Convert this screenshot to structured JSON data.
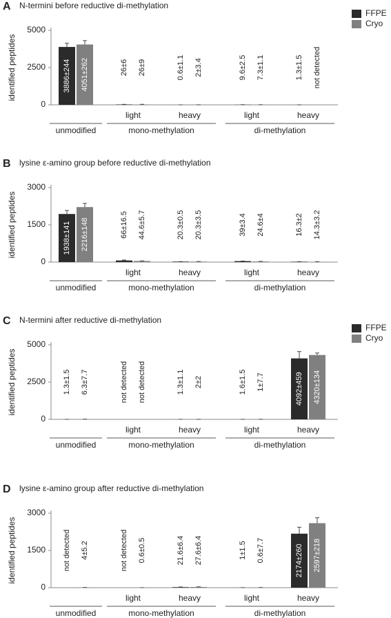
{
  "chart_data": [
    {
      "type": "bar",
      "panel": "A",
      "title": "N-termini before reductive di-methylation",
      "y_label": "identified peptides",
      "categories": [
        null,
        "light",
        "heavy",
        "light",
        "heavy"
      ],
      "groups": [
        "unmodified",
        "mono-methylation",
        "di-methylation"
      ],
      "ylim": [
        0,
        5000
      ],
      "yticks": [
        0,
        2500,
        5000
      ],
      "legend": true,
      "series": [
        {
          "name": "FFPE",
          "color": "#2b2b2b",
          "values": [
            3886,
            26,
            0.6,
            9.6,
            1.3
          ],
          "errors": [
            244,
            6,
            1.1,
            2.5,
            1.5
          ],
          "value_labels": [
            "3886±244",
            "26±6",
            "0.6±1.1",
            "9.6±2.5",
            "1.3±1.5"
          ]
        },
        {
          "name": "Cryo",
          "color": "#808080",
          "values": [
            4051,
            26,
            2,
            7.3,
            null
          ],
          "errors": [
            262,
            9,
            3.4,
            1.1,
            null
          ],
          "value_labels": [
            "4051±262",
            "26±9",
            "2±3.4",
            "7.3±1.1",
            "not detected"
          ]
        }
      ]
    },
    {
      "type": "bar",
      "panel": "B",
      "title": "lysine ε-amino group before reductive di-methylation",
      "y_label": "identified peptides",
      "categories": [
        null,
        "light",
        "heavy",
        "light",
        "heavy"
      ],
      "groups": [
        "unmodified",
        "mono-methylation",
        "di-methylation"
      ],
      "ylim": [
        0,
        3000
      ],
      "yticks": [
        0,
        1500,
        3000
      ],
      "legend": false,
      "series": [
        {
          "name": "FFPE",
          "color": "#2b2b2b",
          "values": [
            1938,
            66,
            20.3,
            39,
            16.3
          ],
          "errors": [
            141,
            16.5,
            0.5,
            3.4,
            2
          ],
          "value_labels": [
            "1938±141",
            "66±16.5",
            "20.3±0.5",
            "39±3.4",
            "16.3±2"
          ]
        },
        {
          "name": "Cryo",
          "color": "#808080",
          "values": [
            2216,
            44.6,
            20.3,
            24.6,
            14.3
          ],
          "errors": [
            148,
            5.7,
            3.5,
            4,
            3.2
          ],
          "value_labels": [
            "2216±148",
            "44.6±5.7",
            "20.3±3.5",
            "24.6±4",
            "14.3±3.2"
          ]
        }
      ]
    },
    {
      "type": "bar",
      "panel": "C",
      "title": "N-termini after reductive di-methylation",
      "y_label": "identified peptides",
      "categories": [
        null,
        "light",
        "heavy",
        "light",
        "heavy"
      ],
      "groups": [
        "unmodified",
        "mono-methylation",
        "di-methylation"
      ],
      "ylim": [
        0,
        5000
      ],
      "yticks": [
        0,
        2500,
        5000
      ],
      "legend": true,
      "series": [
        {
          "name": "FFPE",
          "color": "#2b2b2b",
          "values": [
            1.3,
            null,
            1.3,
            1.6,
            4092
          ],
          "errors": [
            1.5,
            null,
            1.1,
            1.5,
            459
          ],
          "value_labels": [
            "1.3±1.5",
            "not detected",
            "1.3±1.1",
            "1.6±1.5",
            "4092±459"
          ]
        },
        {
          "name": "Cryo",
          "color": "#808080",
          "values": [
            6.3,
            null,
            2,
            1,
            4320
          ],
          "errors": [
            7.7,
            null,
            2,
            7.7,
            134
          ],
          "value_labels": [
            "6.3±7.7",
            "not detected",
            "2±2",
            "1±7.7",
            "4320±134"
          ]
        }
      ]
    },
    {
      "type": "bar",
      "panel": "D",
      "title": "lysine ε-amino group after reductive di-methylation",
      "y_label": "identified peptides",
      "categories": [
        null,
        "light",
        "heavy",
        "light",
        "heavy"
      ],
      "groups": [
        "unmodified",
        "mono-methylation",
        "di-methylation"
      ],
      "ylim": [
        0,
        3000
      ],
      "yticks": [
        0,
        1500,
        3000
      ],
      "legend": false,
      "series": [
        {
          "name": "FFPE",
          "color": "#2b2b2b",
          "values": [
            null,
            null,
            21.6,
            1,
            2174
          ],
          "errors": [
            null,
            null,
            6.4,
            1.5,
            260
          ],
          "value_labels": [
            "not detected",
            "not detected",
            "21.6±6.4",
            "1±1.5",
            "2174±260"
          ]
        },
        {
          "name": "Cryo",
          "color": "#808080",
          "values": [
            4,
            0.6,
            27.6,
            0.6,
            2597
          ],
          "errors": [
            5.2,
            0.5,
            6.4,
            7.7,
            218
          ],
          "value_labels": [
            "4±5.2",
            "0.6±0.5",
            "27.6±6.4",
            "0.6±7.7",
            "2597±218"
          ]
        }
      ]
    }
  ]
}
